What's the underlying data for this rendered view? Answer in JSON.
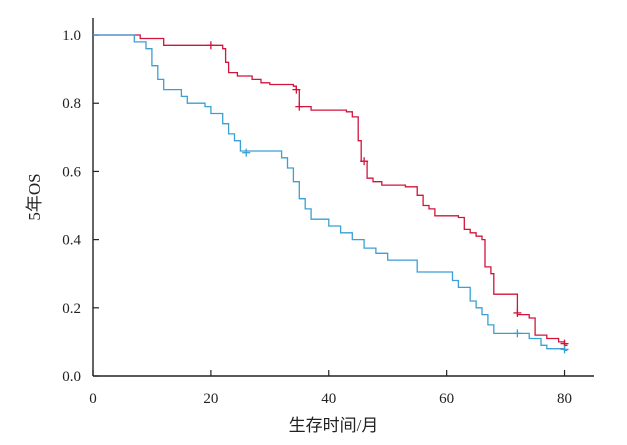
{
  "chart_data": {
    "type": "line",
    "subtype": "kaplan-meier step",
    "title": "",
    "xlabel": "生存时间/月",
    "ylabel": "5年OS",
    "xlim": [
      0,
      85
    ],
    "ylim": [
      0,
      1.05
    ],
    "x_ticks": [
      0,
      20,
      40,
      60,
      80
    ],
    "x_tick_labels": [
      "0",
      "20",
      "40",
      "60",
      "80"
    ],
    "y_ticks": [
      0,
      0.2,
      0.4,
      0.6,
      0.8,
      1.0
    ],
    "y_tick_labels": [
      "0.0",
      "0.2",
      "0.4",
      "0.6",
      "0.8",
      "1.0"
    ],
    "grid": false,
    "legend": "none",
    "series": [
      {
        "color": "#d2143c",
        "steps": [
          [
            0,
            1.0
          ],
          [
            8,
            0.99
          ],
          [
            12,
            0.97
          ],
          [
            22,
            0.96
          ],
          [
            22.5,
            0.92
          ],
          [
            23,
            0.89
          ],
          [
            24.5,
            0.88
          ],
          [
            27,
            0.87
          ],
          [
            28.5,
            0.86
          ],
          [
            30,
            0.855
          ],
          [
            34,
            0.85
          ],
          [
            34.5,
            0.84
          ],
          [
            35,
            0.79
          ],
          [
            37,
            0.78
          ],
          [
            43,
            0.775
          ],
          [
            44,
            0.76
          ],
          [
            45,
            0.69
          ],
          [
            45.5,
            0.63
          ],
          [
            46.5,
            0.58
          ],
          [
            47.5,
            0.57
          ],
          [
            49,
            0.56
          ],
          [
            53,
            0.555
          ],
          [
            55,
            0.53
          ],
          [
            56,
            0.5
          ],
          [
            57,
            0.49
          ],
          [
            58,
            0.47
          ],
          [
            62,
            0.465
          ],
          [
            63,
            0.43
          ],
          [
            64,
            0.42
          ],
          [
            65,
            0.41
          ],
          [
            66,
            0.4
          ],
          [
            66.5,
            0.32
          ],
          [
            67.5,
            0.3
          ],
          [
            68,
            0.24
          ],
          [
            72,
            0.18
          ],
          [
            74,
            0.17
          ],
          [
            75,
            0.12
          ],
          [
            77,
            0.11
          ],
          [
            79,
            0.1
          ],
          [
            80,
            0.09
          ],
          [
            80.5,
            0.09
          ]
        ],
        "censored": [
          [
            20,
            0.97
          ],
          [
            34.5,
            0.84
          ],
          [
            35,
            0.79
          ],
          [
            46,
            0.63
          ],
          [
            72,
            0.185
          ],
          [
            80,
            0.095
          ]
        ]
      },
      {
        "color": "#3a9fd6",
        "steps": [
          [
            0,
            1.0
          ],
          [
            7,
            0.98
          ],
          [
            9,
            0.96
          ],
          [
            10,
            0.91
          ],
          [
            11,
            0.87
          ],
          [
            12,
            0.84
          ],
          [
            15,
            0.82
          ],
          [
            16,
            0.8
          ],
          [
            19,
            0.79
          ],
          [
            20,
            0.77
          ],
          [
            22,
            0.74
          ],
          [
            23,
            0.71
          ],
          [
            24,
            0.69
          ],
          [
            25,
            0.66
          ],
          [
            32,
            0.64
          ],
          [
            33,
            0.61
          ],
          [
            34,
            0.57
          ],
          [
            35,
            0.52
          ],
          [
            36,
            0.49
          ],
          [
            37,
            0.46
          ],
          [
            40,
            0.44
          ],
          [
            42,
            0.42
          ],
          [
            44,
            0.4
          ],
          [
            46,
            0.375
          ],
          [
            48,
            0.36
          ],
          [
            50,
            0.34
          ],
          [
            55,
            0.305
          ],
          [
            61,
            0.28
          ],
          [
            62,
            0.26
          ],
          [
            64,
            0.22
          ],
          [
            65,
            0.2
          ],
          [
            66,
            0.18
          ],
          [
            67,
            0.15
          ],
          [
            68,
            0.125
          ],
          [
            74,
            0.11
          ],
          [
            76,
            0.09
          ],
          [
            77,
            0.08
          ],
          [
            80,
            0.075
          ],
          [
            80.5,
            0.075
          ]
        ],
        "censored": [
          [
            26,
            0.655
          ],
          [
            72,
            0.125
          ],
          [
            80,
            0.078
          ]
        ]
      }
    ]
  }
}
